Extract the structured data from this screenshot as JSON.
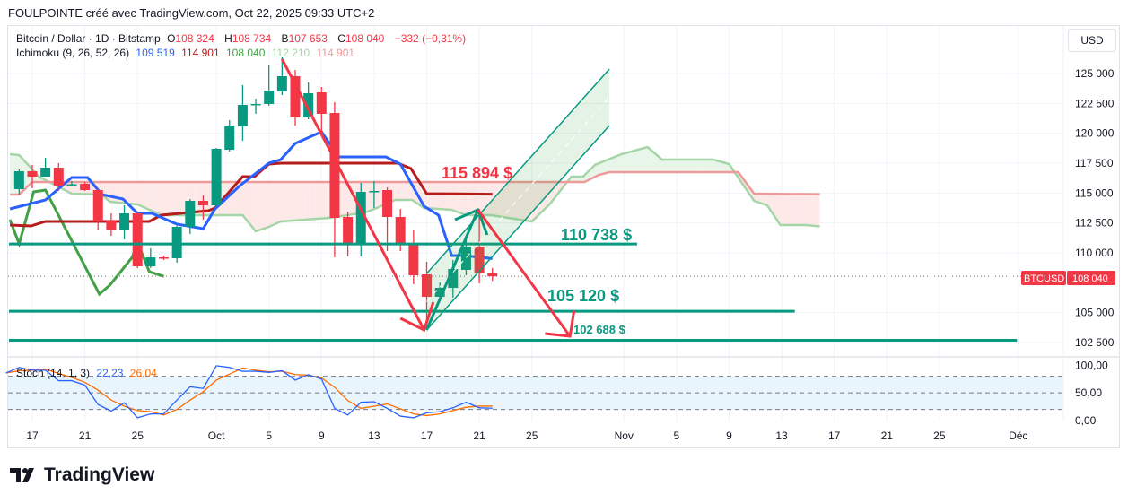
{
  "header": {
    "title": "FOULPOINTE créé avec TradingView.com, Oct 22, 2025 09:33 UTC+2"
  },
  "legend": {
    "symbol": "Bitcoin / Dollar · 1D · Bitstamp",
    "o_label": "O",
    "o": "108 324",
    "h_label": "H",
    "h": "108 734",
    "b_label": "B",
    "b": "107 653",
    "c_label": "C",
    "c": "108 040",
    "change": "−332 (−0,31%)",
    "ichimoku_name": "Ichimoku (9, 26, 52, 26)",
    "ichimoku_values": [
      "109 519",
      "114 901",
      "108 040",
      "112 210",
      "114 901"
    ],
    "stoch_name": "Stoch (14, 1, 3)",
    "stoch_k": "22,23",
    "stoch_d": "26,04"
  },
  "currency_button": "USD",
  "price_tag": {
    "symbol": "BTCUSD",
    "price": "108 040",
    "value": 108040
  },
  "logo_text": "TradingView",
  "colors": {
    "up": "#089981",
    "down": "#f23645",
    "tenkan": "#2962ff",
    "kijun": "#b71c1c",
    "chikou": "#43a047",
    "senkou_a": "#a5d6a7",
    "senkou_b": "#ef9a9a",
    "level": "#089981"
  },
  "chart_data": {
    "type": "candlestick",
    "x_unit": "days from Sep 17, 2025",
    "price_axis": {
      "ticks": [
        125000,
        122500,
        120000,
        117500,
        115000,
        112500,
        110000,
        105000,
        102500
      ],
      "tick_labels": [
        "125 000",
        "122 500",
        "120 000",
        "117 500",
        "115 000",
        "112 500",
        "110 000",
        "105 000",
        "102 500"
      ]
    },
    "stoch_axis": {
      "ticks": [
        100,
        50,
        0
      ],
      "tick_labels": [
        "100,00",
        "50,00",
        "0,00"
      ],
      "band": [
        20,
        80
      ]
    },
    "date_ticks": [
      {
        "d": 0,
        "label": "17"
      },
      {
        "d": 4,
        "label": "21"
      },
      {
        "d": 8,
        "label": "25"
      },
      {
        "d": 14,
        "label": "Oct"
      },
      {
        "d": 18,
        "label": "5"
      },
      {
        "d": 22,
        "label": "9"
      },
      {
        "d": 26,
        "label": "13"
      },
      {
        "d": 30,
        "label": "17"
      },
      {
        "d": 34,
        "label": "21"
      },
      {
        "d": 38,
        "label": "25"
      },
      {
        "d": 45,
        "label": "Nov"
      },
      {
        "d": 49,
        "label": "5"
      },
      {
        "d": 53,
        "label": "9"
      },
      {
        "d": 57,
        "label": "13"
      },
      {
        "d": 61,
        "label": "17"
      },
      {
        "d": 65,
        "label": "21"
      },
      {
        "d": 69,
        "label": "25"
      },
      {
        "d": 75,
        "label": "Déc"
      }
    ],
    "candles_start_d": -1,
    "candles_ohlc": [
      [
        115325,
        116975,
        114875,
        116825
      ],
      [
        116825,
        117350,
        115400,
        116375
      ],
      [
        116375,
        117950,
        116375,
        117125
      ],
      [
        117125,
        117500,
        115175,
        115625
      ],
      [
        115660,
        116000,
        115550,
        115740
      ],
      [
        115775,
        115925,
        115175,
        115250
      ],
      [
        115250,
        115400,
        111950,
        112625
      ],
      [
        112700,
        113300,
        111425,
        111950
      ],
      [
        111950,
        113975,
        111125,
        113300
      ],
      [
        113300,
        113450,
        108725,
        108875
      ],
      [
        108875,
        110375,
        108725,
        109625
      ],
      [
        109625,
        109775,
        109400,
        109550
      ],
      [
        109550,
        112250,
        109175,
        112175
      ],
      [
        112175,
        114500,
        111575,
        114350
      ],
      [
        114350,
        114800,
        112775,
        113975
      ],
      [
        113975,
        118775,
        113900,
        118700
      ],
      [
        118625,
        121100,
        118475,
        120650
      ],
      [
        120575,
        124025,
        119375,
        122375
      ],
      [
        122375,
        122900,
        121625,
        122450
      ],
      [
        122450,
        125750,
        122300,
        123575
      ],
      [
        123500,
        126350,
        123200,
        124775
      ],
      [
        124775,
        125300,
        120650,
        121325
      ],
      [
        121325,
        124250,
        121175,
        123350
      ],
      [
        123425,
        123875,
        119900,
        121625
      ],
      [
        121700,
        122600,
        109625,
        112925
      ],
      [
        113000,
        113450,
        109700,
        110675
      ],
      [
        110675,
        115850,
        109700,
        115100
      ],
      [
        115100,
        116000,
        113750,
        115175
      ],
      [
        115250,
        115475,
        110150,
        113000
      ],
      [
        113000,
        113675,
        110150,
        110675
      ],
      [
        110750,
        111950,
        107375,
        108125
      ],
      [
        108200,
        109250,
        103550,
        106325
      ],
      [
        106325,
        107525,
        106325,
        107075
      ],
      [
        107075,
        109400,
        106250,
        108650
      ],
      [
        108575,
        111275,
        108125,
        110525
      ],
      [
        110525,
        113675,
        107450,
        108275
      ],
      [
        108324,
        108734,
        107653,
        108040
      ]
    ],
    "ichimoku": {
      "tenkan": [
        [
          -1.7,
          113675
        ],
        [
          1,
          114425
        ],
        [
          3,
          116300
        ],
        [
          4.2,
          116300
        ],
        [
          5.3,
          114875
        ],
        [
          6.9,
          114500
        ],
        [
          8,
          113300
        ],
        [
          9.1,
          113300
        ],
        [
          11,
          112400
        ],
        [
          13,
          112025
        ],
        [
          13.9,
          113675
        ],
        [
          15.8,
          115625
        ],
        [
          18,
          117500
        ],
        [
          18.9,
          117800
        ],
        [
          20,
          119150
        ],
        [
          22,
          120125
        ],
        [
          23.3,
          118025
        ],
        [
          26.9,
          118025
        ],
        [
          28,
          117425
        ],
        [
          29.8,
          113900
        ],
        [
          30.9,
          113150
        ],
        [
          31.9,
          109775
        ],
        [
          32.8,
          109775
        ],
        [
          35,
          109519
        ]
      ],
      "kijun": [
        [
          -1.7,
          112325
        ],
        [
          -0.1,
          112250
        ],
        [
          1,
          112625
        ],
        [
          8.9,
          112625
        ],
        [
          9.8,
          113150
        ],
        [
          13.4,
          113525
        ],
        [
          13.9,
          113750
        ],
        [
          16,
          116375
        ],
        [
          16.9,
          116375
        ],
        [
          18,
          117425
        ],
        [
          18.9,
          117500
        ],
        [
          27.8,
          117500
        ],
        [
          28.8,
          117050
        ],
        [
          30,
          114950
        ],
        [
          35,
          114901
        ]
      ],
      "chikou": [
        [
          -1.7,
          112775
        ],
        [
          -1,
          110750
        ],
        [
          0.1,
          115100
        ],
        [
          1,
          115250
        ],
        [
          5.1,
          106550
        ],
        [
          5.9,
          107300
        ],
        [
          7.6,
          109625
        ],
        [
          8,
          110900
        ],
        [
          8.9,
          108425
        ],
        [
          10,
          108040
        ]
      ],
      "senkou_a": [
        [
          -1.7,
          118250
        ],
        [
          -1,
          118175
        ],
        [
          0.5,
          116375
        ],
        [
          3,
          114950
        ],
        [
          5.3,
          114875
        ],
        [
          5.9,
          114275
        ],
        [
          8,
          114050
        ],
        [
          9.8,
          113150
        ],
        [
          16,
          113150
        ],
        [
          17,
          111800
        ],
        [
          18,
          112175
        ],
        [
          18.9,
          112625
        ],
        [
          22.6,
          112925
        ],
        [
          25.3,
          113375
        ],
        [
          26.2,
          113750
        ],
        [
          27.6,
          114425
        ],
        [
          28.9,
          114425
        ],
        [
          29.8,
          113750
        ],
        [
          31.9,
          113600
        ],
        [
          33,
          113150
        ],
        [
          34.9,
          113150
        ],
        [
          36.2,
          112925
        ],
        [
          38,
          112625
        ],
        [
          39.4,
          114125
        ],
        [
          41,
          116375
        ],
        [
          41.9,
          116375
        ],
        [
          42.8,
          117350
        ],
        [
          44.8,
          118250
        ],
        [
          46.8,
          118850
        ],
        [
          47.9,
          117800
        ],
        [
          51.8,
          117800
        ],
        [
          53,
          117425
        ],
        [
          54.9,
          114350
        ],
        [
          55.9,
          113975
        ],
        [
          56.9,
          112325
        ],
        [
          58.8,
          112325
        ],
        [
          59.9,
          112210
        ]
      ],
      "senkou_b": [
        [
          -1.7,
          114875
        ],
        [
          -1,
          114875
        ],
        [
          0,
          115925
        ],
        [
          42,
          115925
        ],
        [
          43.1,
          116525
        ],
        [
          43.9,
          116750
        ],
        [
          53.7,
          116750
        ],
        [
          54.9,
          114950
        ],
        [
          59.9,
          114901
        ]
      ]
    },
    "stochastic": {
      "start_d": -2,
      "k": [
        86,
        96,
        91,
        91,
        72,
        72,
        64,
        29,
        17,
        32,
        5,
        12,
        12,
        37,
        61,
        58,
        99,
        96,
        89,
        89,
        87,
        90,
        73,
        83,
        75,
        22,
        10,
        33,
        34,
        22,
        8,
        5,
        14,
        16,
        23,
        33,
        23,
        22.23
      ],
      "d": [
        86,
        90,
        91,
        93,
        85,
        78,
        69,
        55,
        37,
        26,
        18,
        16,
        10,
        20,
        37,
        52,
        73,
        84,
        95,
        91,
        88,
        89,
        83,
        82,
        77,
        60,
        36,
        22,
        26,
        30,
        21,
        12,
        9,
        12,
        18,
        24,
        26,
        26.04
      ]
    },
    "annotations": {
      "levels": [
        {
          "price": 110738,
          "label": "110 738 $",
          "to_d": 46
        },
        {
          "price": 105120,
          "label": "105 120 $",
          "to_d": 58
        },
        {
          "price": 102688,
          "label": "102 688 $",
          "to_d": 74.9
        }
      ],
      "resistance_label": "115 894 $",
      "red_arrow_1": {
        "from": [
          19,
          126200
        ],
        "to": [
          29.8,
          103550
        ],
        "head": [
          [
            28,
            104525
          ],
          [
            30.5,
            105875
          ]
        ]
      },
      "green_channel": {
        "upper": [
          [
            30,
            108275
          ],
          [
            43.9,
            125375
          ]
        ],
        "lower": [
          [
            30,
            103550
          ],
          [
            43.9,
            120650
          ]
        ]
      },
      "green_arrow": {
        "from": [
          30,
          103550
        ],
        "to": [
          33.9,
          113600
        ],
        "head": [
          [
            32.15,
            112775
          ],
          [
            34.6,
            111500
          ]
        ]
      },
      "red_arrow_2": {
        "from": [
          33.9,
          113600
        ],
        "to": [
          40.9,
          103025
        ],
        "head": [
          [
            39,
            103250
          ],
          [
            41.2,
            105125
          ]
        ]
      }
    }
  }
}
